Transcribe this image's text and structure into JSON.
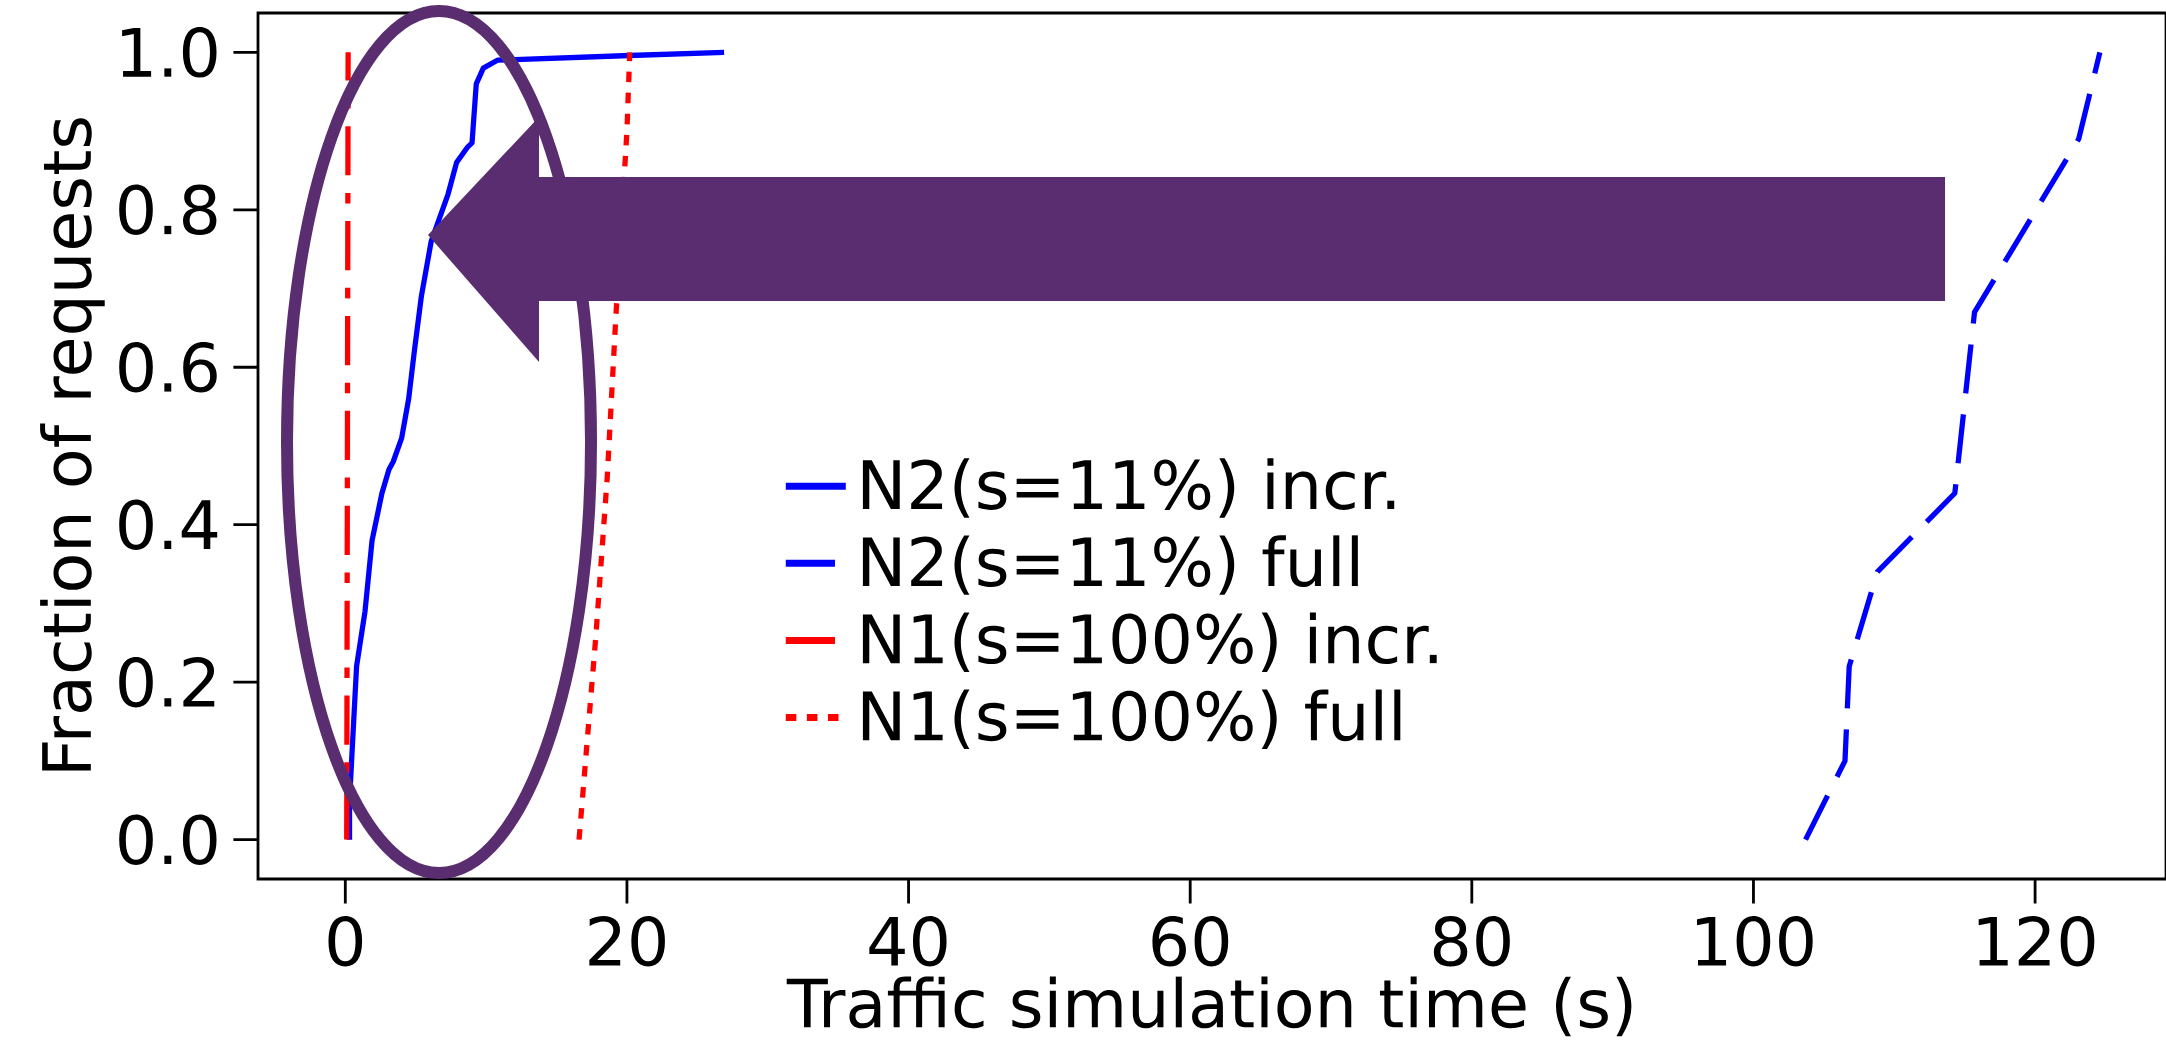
{
  "chart_data": {
    "type": "line",
    "xlabel": "Traffic simulation time (s)",
    "ylabel": "Fraction of requests",
    "xlim": [
      -6.2,
      129.3
    ],
    "ylim": [
      -0.05,
      1.05
    ],
    "xticks": [
      0,
      20,
      40,
      60,
      80,
      100,
      120
    ],
    "yticks": [
      {
        "value": 0,
        "label": "0.0"
      },
      {
        "value": 0.2,
        "label": "0.2"
      },
      {
        "value": 0.4,
        "label": "0.4"
      },
      {
        "value": 0.6,
        "label": "0.6"
      },
      {
        "value": 0.8,
        "label": "0.8"
      },
      {
        "value": 1,
        "label": "1.0"
      }
    ],
    "legend": "center",
    "series": [
      {
        "name": "N2(s=11%) incr.",
        "color": "#0000ff",
        "line_style": "solid",
        "x": [
          0.3,
          0.3,
          0.8,
          1.4,
          1.9,
          2.6,
          3.1,
          3.4,
          4.0,
          4.5,
          4.9,
          5.4,
          6.1,
          7.3,
          7.9,
          8.7,
          9.0,
          9.3,
          9.8,
          10.8,
          20.2,
          26.9
        ],
        "values": [
          0,
          0.05,
          0.22,
          0.29,
          0.38,
          0.44,
          0.47,
          0.48,
          0.51,
          0.56,
          0.62,
          0.69,
          0.76,
          0.82,
          0.86,
          0.88,
          0.885,
          0.96,
          0.98,
          0.99,
          0.996,
          1.0
        ]
      },
      {
        "name": "N2(s=11%) full",
        "color": "#0000ff",
        "line_style": "dashed",
        "x": [
          103.7,
          106.5,
          106.8,
          108.8,
          114.3,
          115.7,
          123.1,
          124.6
        ],
        "values": [
          0,
          0.1,
          0.22,
          0.34,
          0.44,
          0.67,
          0.89,
          1.0
        ]
      },
      {
        "name": "N1(s=100%) incr.",
        "color": "#ff0000",
        "line_style": "dashdot",
        "x": [
          0.1,
          0.2
        ],
        "values": [
          0,
          1.0
        ]
      },
      {
        "name": "N1(s=100%) full",
        "color": "#ff0000",
        "line_style": "dotted",
        "x": [
          16.6,
          17.8,
          18.6,
          19.2,
          20.0,
          20.2
        ],
        "values": [
          0,
          0.26,
          0.46,
          0.66,
          0.9,
          1.0
        ]
      }
    ]
  }
}
